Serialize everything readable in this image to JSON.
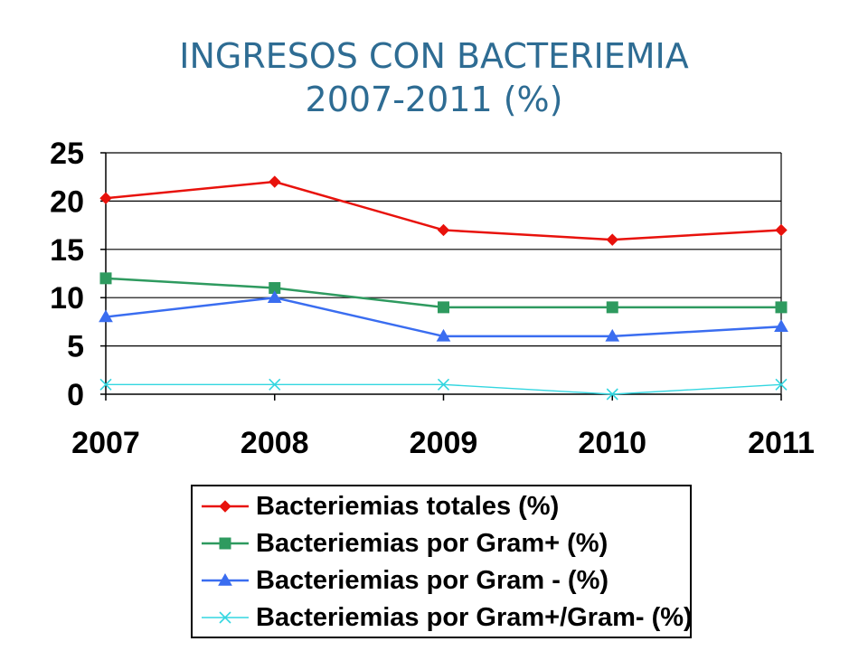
{
  "title_line1": "INGRESOS CON BACTERIEMIA",
  "title_line2": "2007-2011 (%)",
  "chart_data": {
    "type": "line",
    "title": "INGRESOS CON BACTERIEMIA 2007-2011 (%)",
    "categories": [
      "2007",
      "2008",
      "2009",
      "2010",
      "2011"
    ],
    "yticks": [
      "0",
      "5",
      "10",
      "15",
      "20",
      "25"
    ],
    "ylim": [
      0,
      25
    ],
    "grid": true,
    "legend_position": "bottom",
    "series": [
      {
        "name": "Bacteriemias totales (%)",
        "values": [
          20.3,
          22,
          17,
          16,
          17
        ],
        "color": "#e8120c",
        "marker": "diamond"
      },
      {
        "name": "Bacteriemias por Gram+ (%)",
        "values": [
          12,
          11,
          9,
          9,
          9
        ],
        "color": "#2e9a5f",
        "marker": "square"
      },
      {
        "name": "Bacteriemias por Gram - (%)",
        "values": [
          8,
          10,
          6,
          6,
          7
        ],
        "color": "#3a6df0",
        "marker": "triangle"
      },
      {
        "name": "Bacteriemias por Gram+/Gram- (%)",
        "values": [
          1,
          1,
          1,
          0,
          1
        ],
        "color": "#33d6e0",
        "marker": "x"
      }
    ]
  }
}
